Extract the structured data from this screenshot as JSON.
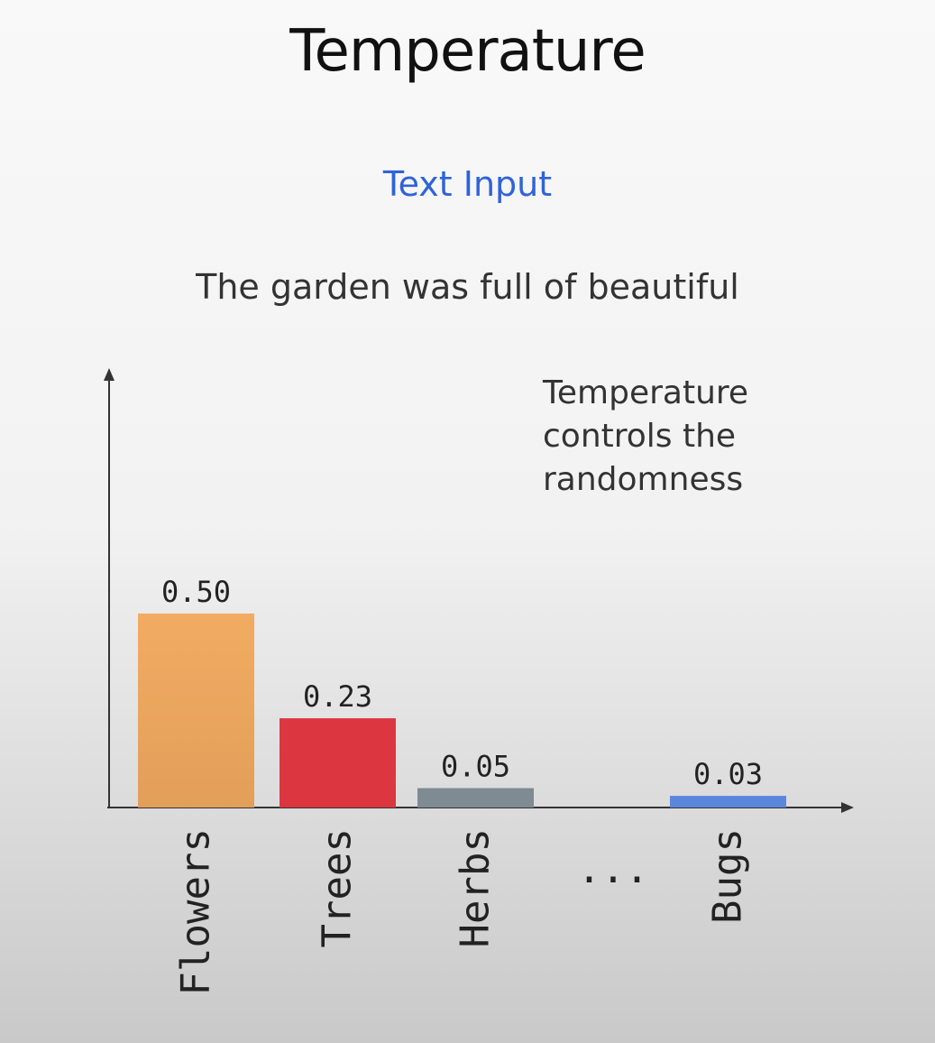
{
  "slide": {
    "title": "Temperature",
    "input_label": "Text Input",
    "prompt": "The garden was full of beautiful",
    "annotation_lines": [
      "Temperature",
      "controls the",
      "randomness"
    ]
  },
  "chart_data": {
    "type": "bar",
    "categories": [
      "Flowers",
      "Trees",
      "Herbs",
      "Bugs"
    ],
    "values": [
      0.5,
      0.23,
      0.05,
      0.03
    ],
    "value_labels": [
      "0.50",
      "0.23",
      "0.05",
      "0.03"
    ],
    "ellipsis": "...",
    "colors": [
      "#eea55e",
      "#dc3640",
      "#7e8b92",
      "#5b86dc"
    ],
    "ylim": [
      0,
      0.5
    ],
    "xlabel": "",
    "ylabel": "",
    "grid": false,
    "legend": "none"
  }
}
